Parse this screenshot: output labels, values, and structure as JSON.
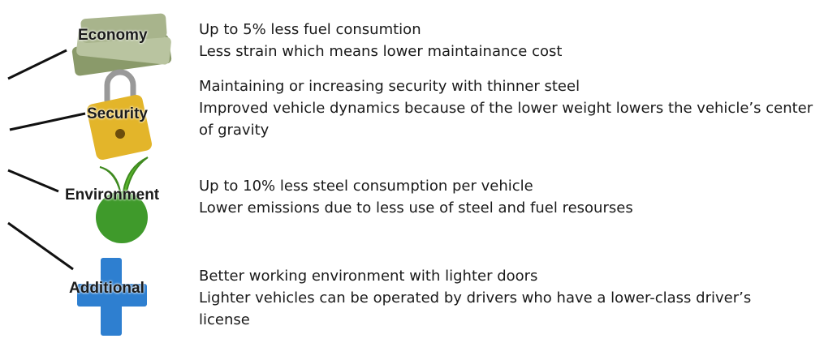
{
  "items": [
    {
      "label": "Economy",
      "lines": [
        "Up to 5% less fuel consumtion",
        "Less strain which means lower maintainance cost"
      ]
    },
    {
      "label": "Security",
      "lines": [
        "Maintaining or increasing security with thinner steel",
        "Improved vehicle dynamics because of the lower weight lowers the vehicle’s center of gravity"
      ]
    },
    {
      "label": "Environment",
      "lines": [
        "Up to 10% less steel consumption per vehicle",
        "Lower emissions due to less use of steel and fuel resourses"
      ]
    },
    {
      "label": "Additional",
      "lines": [
        "Better working environment with lighter doors",
        "Lighter vehicles can be operated by drivers who have a lower-class driver’s license"
      ]
    }
  ]
}
